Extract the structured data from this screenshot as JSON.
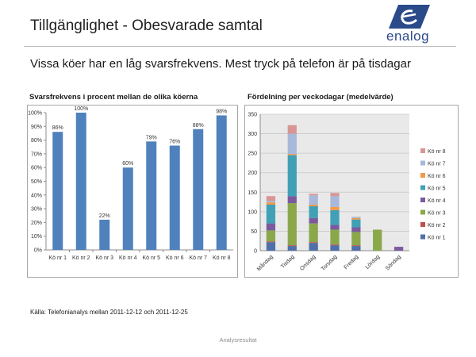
{
  "header": {
    "title": "Tillgänglighet - Obesvarade samtal",
    "logo_text": "enalog"
  },
  "subtitle": "Vissa köer har en låg svarsfrekvens. Mest tryck på telefon är på tisdagar",
  "source": "Källa: Telefonianalys mellan 2011-12-12 och 2011-12-25",
  "footer": "Analysresultat",
  "colors": {
    "bar": "#4f81bd",
    "plot_bg_right": "#e9e9e9",
    "queues": [
      "#4f6fa8",
      "#c0504d",
      "#8aa84a",
      "#7a5a9e",
      "#3fa0b6",
      "#f29a47",
      "#a8b8db",
      "#d99594"
    ]
  },
  "chart_data": [
    {
      "type": "bar",
      "title": "Svarsfrekvens i procent mellan de olika köerna",
      "categories": [
        "Kö nr 1",
        "Kö nr 2",
        "Kö nr 3",
        "Kö nr 4",
        "Kö nr 5",
        "Kö nr 6",
        "Kö nr 7",
        "Kö nr 8"
      ],
      "values": [
        86,
        100,
        22,
        60,
        79,
        76,
        88,
        98
      ],
      "data_labels": [
        "86%",
        "100%",
        "22%",
        "60%",
        "79%",
        "76%",
        "88%",
        "98%"
      ],
      "ylim": [
        0,
        100
      ],
      "yticks": [
        "0%",
        "10%",
        "20%",
        "30%",
        "40%",
        "50%",
        "60%",
        "70%",
        "80%",
        "90%",
        "100%"
      ],
      "xlabel": "",
      "ylabel": "",
      "grid": false
    },
    {
      "type": "bar",
      "stacked": true,
      "title": "Fördelning per veckodagar (medelvärde)",
      "categories": [
        "Måndag",
        "Tisdag",
        "Onsdag",
        "Torsdag",
        "Fredag",
        "Lördag",
        "Söndag"
      ],
      "ylim": [
        0,
        350
      ],
      "yticks": [
        "0",
        "50",
        "100",
        "150",
        "200",
        "250",
        "300",
        "350"
      ],
      "legend_position": "right",
      "series": [
        {
          "name": "Kö nr 1",
          "values": [
            22,
            12,
            20,
            14,
            12,
            0,
            0
          ]
        },
        {
          "name": "Kö nr 2",
          "values": [
            2,
            2,
            2,
            2,
            2,
            0,
            0
          ]
        },
        {
          "name": "Kö nr 3",
          "values": [
            28,
            108,
            48,
            38,
            34,
            54,
            0
          ]
        },
        {
          "name": "Kö nr 4",
          "values": [
            18,
            18,
            14,
            12,
            12,
            0,
            10
          ]
        },
        {
          "name": "Kö nr 5",
          "values": [
            48,
            105,
            30,
            38,
            20,
            0,
            0
          ]
        },
        {
          "name": "Kö nr 6",
          "values": [
            6,
            3,
            4,
            8,
            4,
            0,
            0
          ]
        },
        {
          "name": "Kö nr 7",
          "values": [
            4,
            52,
            24,
            28,
            3,
            0,
            0
          ]
        },
        {
          "name": "Kö nr 8",
          "values": [
            12,
            22,
            4,
            8,
            0,
            0,
            0
          ]
        }
      ]
    }
  ]
}
